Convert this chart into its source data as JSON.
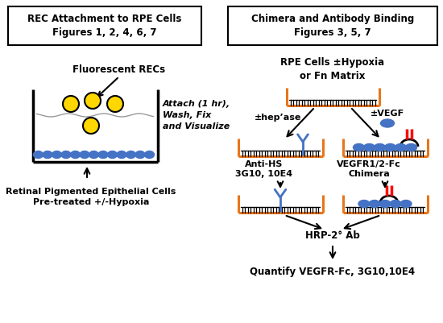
{
  "bg_color": "#ffffff",
  "orange": "#E8751A",
  "blue": "#4472C4",
  "red": "#FF0000",
  "yellow": "#FFD700",
  "black": "#000000",
  "left_title": "REC Attachment to RPE Cells\nFigures 1, 2, 4, 6, 7",
  "right_title": "Chimera and Antibody Binding\nFigures 3, 5, 7",
  "fluor_label": "Fluorescent RECs",
  "attach_label": "Attach (1 hr),\nWash, Fix\nand Visualize",
  "rpe_label": "Retinal Pigmented Epithelial Cells\nPre-treated +/-Hypoxia",
  "rpe_cells_label": "RPE Cells ±Hypoxia\nor Fn Matrix",
  "hepase_label": "±hep’ase",
  "vegf_label": "±VEGF",
  "antihs_label": "Anti-HS\n3G10, 10E4",
  "chimera_label": "VEGFR1/2-Fc\nChimera",
  "hrp_label": "HRP-2° Ab",
  "quantify_label": "Quantify VEGFR-Fc, 3G10,10E4"
}
